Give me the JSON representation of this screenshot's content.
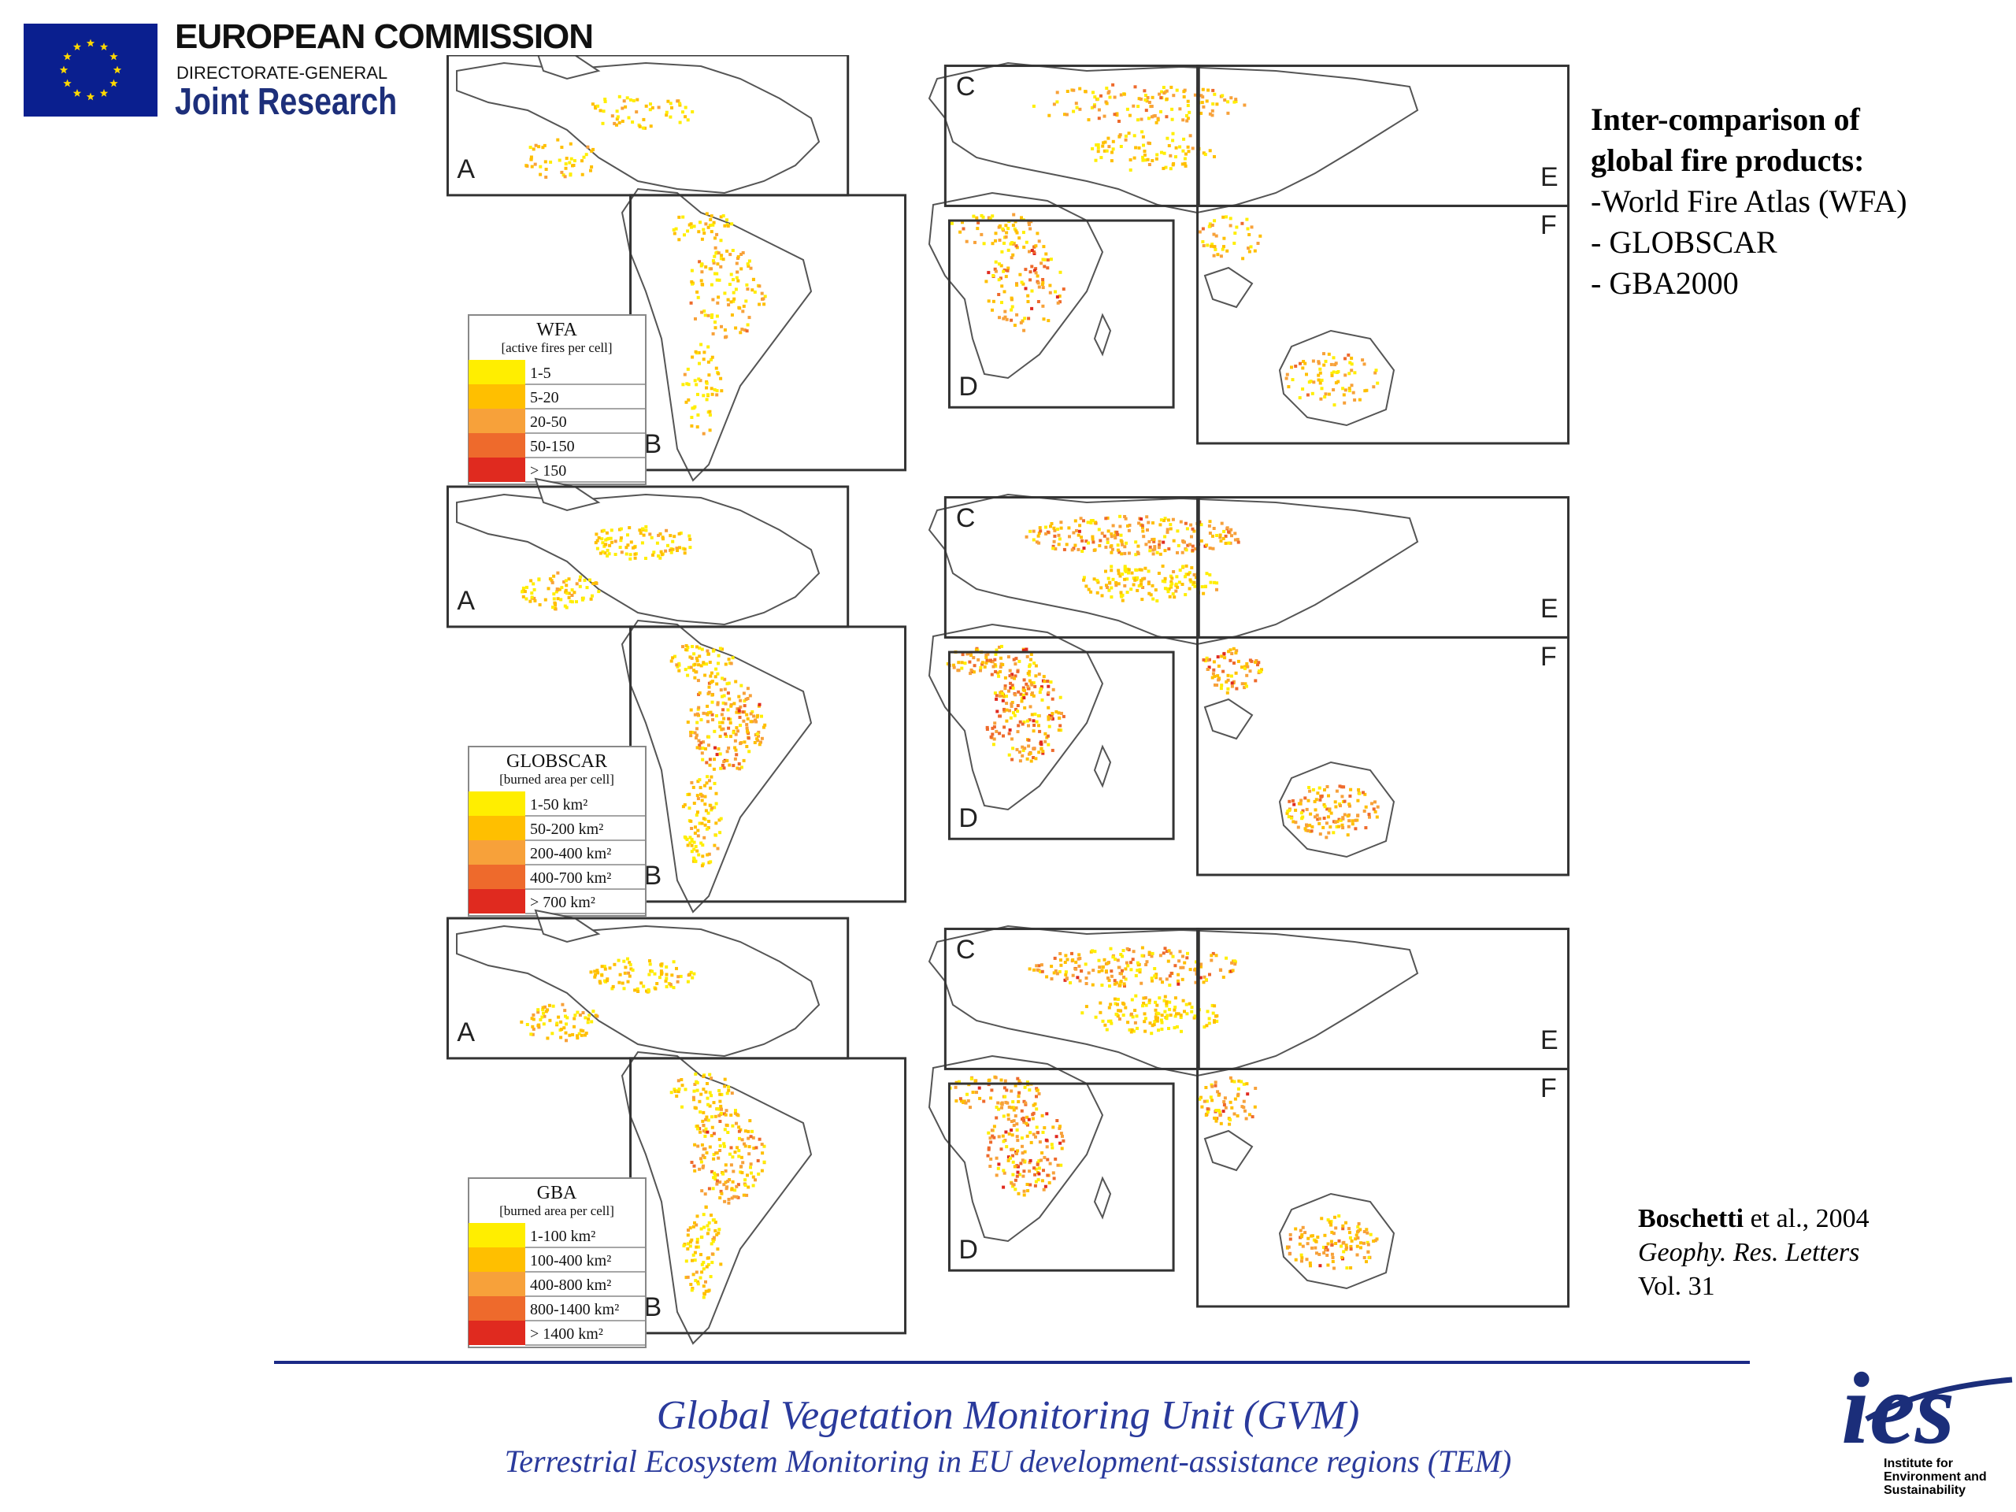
{
  "header": {
    "org_name": "EUROPEAN COMMISSION",
    "directorate": "DIRECTORATE-GENERAL",
    "centre": "Joint Research"
  },
  "sidebar": {
    "heading_line1": "Inter-comparison of",
    "heading_line2": "global fire products:",
    "items": [
      "-World Fire Atlas (WFA)",
      "- GLOBSCAR",
      "- GBA2000"
    ]
  },
  "citation": {
    "author": "Boschetti",
    "rest": " et al., 2004",
    "journal": "Geophy. Res. Letters",
    "volume": "Vol. 31"
  },
  "maps": [
    {
      "legend_title": "WFA",
      "legend_unit": "[active fires per cell]",
      "classes": [
        "1-5",
        "5-20",
        "20-50",
        "50-150",
        "> 150"
      ]
    },
    {
      "legend_title": "GLOBSCAR",
      "legend_unit": "[burned area per cell]",
      "classes": [
        "1-50 km²",
        "50-200 km²",
        "200-400 km²",
        "400-700 km²",
        "> 700 km²"
      ]
    },
    {
      "legend_title": "GBA",
      "legend_unit": "[burned area per cell]",
      "classes": [
        "1-100 km²",
        "100-400 km²",
        "400-800 km²",
        "800-1400 km²",
        "> 1400 km²"
      ]
    }
  ],
  "region_labels": [
    "A",
    "B",
    "C",
    "D",
    "E",
    "F"
  ],
  "legend_colors": [
    "#ffee00",
    "#ffbf00",
    "#f7a13a",
    "#ee6a2c",
    "#e02a1f"
  ],
  "footer": {
    "line1": "Global Vegetation Monitoring Unit (GVM)",
    "line2": "Terrestrial Ecosystem Monitoring in EU development-assistance regions (TEM)"
  },
  "ies": {
    "logo_text": "ies",
    "caption": [
      "Institute for",
      "Environment and",
      "Sustainability"
    ]
  }
}
